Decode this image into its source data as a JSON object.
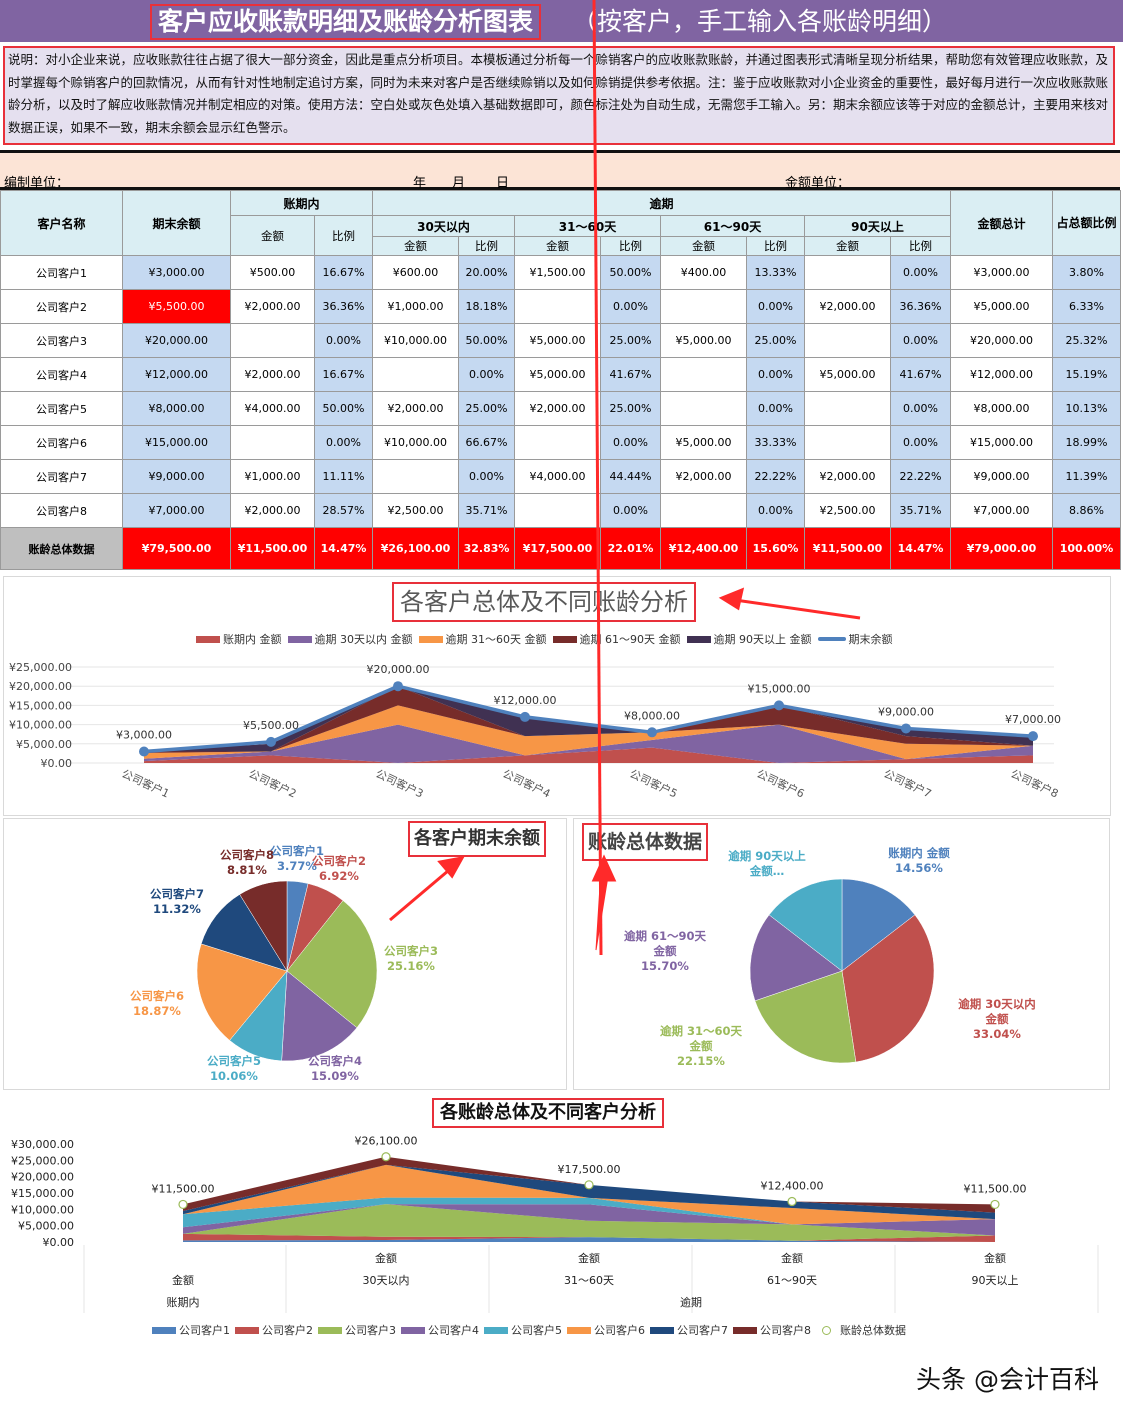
{
  "title": {
    "main": "客户应收账款明细及账龄分析图表",
    "sub": "（按客户，手工输入各账龄明细）"
  },
  "description": "说明：对小企业来说，应收账款往往占据了很大一部分资金，因此是重点分析项目。本模板通过分析每一个赊销客户的应收账款账龄，并通过图表形式清晰呈现分析结果，帮助您有效管理应收账款，及时掌握每个赊销客户的回款情况，从而有针对性地制定追讨方案，同时为未来对客户是否继续赊销以及如何赊销提供参考依据。注：鉴于应收账款对小企业资金的重要性，最好每月进行一次应收账款账龄分析，以及时了解应收账款情况并制定相应的对策。使用方法：空白处或灰色处填入基础数据即可，颜色标注处为自动生成，无需您手工输入。另：期末余额应该等于对应的金额总计，主要用来核对数据正误，如果不一致，期末余额会显示红色警示。",
  "unit_row": {
    "org": "编制单位：",
    "year": "年",
    "month": "月",
    "day": "日",
    "currency": "金额单位："
  },
  "table": {
    "headers": {
      "customer": "客户名称",
      "balance": "期末余额",
      "in_term": "账期内",
      "overdue": "逾期",
      "d30": "30天以内",
      "d60": "31～60天",
      "d90": "61～90天",
      "d90p": "90天以上",
      "amount": "金额",
      "ratio": "比例",
      "total": "金额总计",
      "share": "占总额比例"
    },
    "rows": [
      {
        "name": "公司客户1",
        "balance": "¥3,000.00",
        "in_amt": "¥500.00",
        "in_pct": "16.67%",
        "a30": "¥600.00",
        "p30": "20.00%",
        "a60": "¥1,500.00",
        "p60": "50.00%",
        "a90": "¥400.00",
        "p90": "13.33%",
        "a90p": "",
        "p90p": "0.00%",
        "total": "¥3,000.00",
        "share": "3.80%",
        "alert": false
      },
      {
        "name": "公司客户2",
        "balance": "¥5,500.00",
        "in_amt": "¥2,000.00",
        "in_pct": "36.36%",
        "a30": "¥1,000.00",
        "p30": "18.18%",
        "a60": "",
        "p60": "0.00%",
        "a90": "",
        "p90": "0.00%",
        "a90p": "¥2,000.00",
        "p90p": "36.36%",
        "total": "¥5,000.00",
        "share": "6.33%",
        "alert": true
      },
      {
        "name": "公司客户3",
        "balance": "¥20,000.00",
        "in_amt": "",
        "in_pct": "0.00%",
        "a30": "¥10,000.00",
        "p30": "50.00%",
        "a60": "¥5,000.00",
        "p60": "25.00%",
        "a90": "¥5,000.00",
        "p90": "25.00%",
        "a90p": "",
        "p90p": "0.00%",
        "total": "¥20,000.00",
        "share": "25.32%",
        "alert": false
      },
      {
        "name": "公司客户4",
        "balance": "¥12,000.00",
        "in_amt": "¥2,000.00",
        "in_pct": "16.67%",
        "a30": "",
        "p30": "0.00%",
        "a60": "¥5,000.00",
        "p60": "41.67%",
        "a90": "",
        "p90": "0.00%",
        "a90p": "¥5,000.00",
        "p90p": "41.67%",
        "total": "¥12,000.00",
        "share": "15.19%",
        "alert": false
      },
      {
        "name": "公司客户5",
        "balance": "¥8,000.00",
        "in_amt": "¥4,000.00",
        "in_pct": "50.00%",
        "a30": "¥2,000.00",
        "p30": "25.00%",
        "a60": "¥2,000.00",
        "p60": "25.00%",
        "a90": "",
        "p90": "0.00%",
        "a90p": "",
        "p90p": "0.00%",
        "total": "¥8,000.00",
        "share": "10.13%",
        "alert": false
      },
      {
        "name": "公司客户6",
        "balance": "¥15,000.00",
        "in_amt": "",
        "in_pct": "0.00%",
        "a30": "¥10,000.00",
        "p30": "66.67%",
        "a60": "",
        "p60": "0.00%",
        "a90": "¥5,000.00",
        "p90": "33.33%",
        "a90p": "",
        "p90p": "0.00%",
        "total": "¥15,000.00",
        "share": "18.99%",
        "alert": false
      },
      {
        "name": "公司客户7",
        "balance": "¥9,000.00",
        "in_amt": "¥1,000.00",
        "in_pct": "11.11%",
        "a30": "",
        "p30": "0.00%",
        "a60": "¥4,000.00",
        "p60": "44.44%",
        "a90": "¥2,000.00",
        "p90": "22.22%",
        "a90p": "¥2,000.00",
        "p90p": "22.22%",
        "total": "¥9,000.00",
        "share": "11.39%",
        "alert": false
      },
      {
        "name": "公司客户8",
        "balance": "¥7,000.00",
        "in_amt": "¥2,000.00",
        "in_pct": "28.57%",
        "a30": "¥2,500.00",
        "p30": "35.71%",
        "a60": "",
        "p60": "0.00%",
        "a90": "",
        "p90": "0.00%",
        "a90p": "¥2,500.00",
        "p90p": "35.71%",
        "total": "¥7,000.00",
        "share": "8.86%",
        "alert": false
      }
    ],
    "total_row": {
      "name": "账龄总体数据",
      "balance": "¥79,500.00",
      "in_amt": "¥11,500.00",
      "in_pct": "14.47%",
      "a30": "¥26,100.00",
      "p30": "32.83%",
      "a60": "¥17,500.00",
      "p60": "22.01%",
      "a90": "¥12,400.00",
      "p90": "15.60%",
      "a90p": "¥11,500.00",
      "p90p": "14.47%",
      "total": "¥79,000.00",
      "share": "100.00%"
    }
  },
  "chart_data": [
    {
      "type": "area",
      "title": "各客户总体及不同账龄分析",
      "stacked": true,
      "legend": "top",
      "categories": [
        "公司客户1",
        "公司客户2",
        "公司客户3",
        "公司客户4",
        "公司客户5",
        "公司客户6",
        "公司客户7",
        "公司客户8"
      ],
      "yticks": [
        "¥25,000.00",
        "¥20,000.00",
        "¥15,000.00",
        "¥10,000.00",
        "¥5,000.00",
        "¥0.00"
      ],
      "ylim": [
        0,
        25000
      ],
      "series": [
        {
          "name": "账期内 金额",
          "color": "#c0504d",
          "values": [
            500,
            2000,
            0,
            2000,
            4000,
            0,
            1000,
            2000
          ]
        },
        {
          "name": "逾期 30天以内 金额",
          "color": "#8064a2",
          "values": [
            600,
            1000,
            10000,
            0,
            2000,
            10000,
            0,
            2500
          ]
        },
        {
          "name": "逾期 31～60天 金额",
          "color": "#f79646",
          "values": [
            1500,
            0,
            5000,
            5000,
            2000,
            0,
            4000,
            0
          ]
        },
        {
          "name": "逾期 61～90天 金额",
          "color": "#772c2a",
          "values": [
            400,
            0,
            5000,
            0,
            0,
            5000,
            2000,
            0
          ]
        },
        {
          "name": "逾期 90天以上 金额",
          "color": "#403152",
          "values": [
            0,
            2000,
            0,
            5000,
            0,
            0,
            2000,
            2500
          ]
        }
      ],
      "line": {
        "name": "期末余额",
        "color": "#4f81bd",
        "values": [
          3000,
          5500,
          20000,
          12000,
          8000,
          15000,
          9000,
          7000
        ],
        "labels": [
          "¥3,000.00",
          "¥5,500.00",
          "¥20,000.00",
          "¥12,000.00",
          "¥8,000.00",
          "¥15,000.00",
          "¥9,000.00",
          "¥7,000.00"
        ]
      }
    },
    {
      "type": "pie",
      "title": "各客户期末余额",
      "slices": [
        {
          "name": "公司客户1",
          "value": 3000,
          "pct": "3.77%",
          "color": "#4f81bd"
        },
        {
          "name": "公司客户2",
          "value": 5500,
          "pct": "6.92%",
          "color": "#c0504d"
        },
        {
          "name": "公司客户3",
          "value": 20000,
          "pct": "25.16%",
          "color": "#9bbb59"
        },
        {
          "name": "公司客户4",
          "value": 12000,
          "pct": "15.09%",
          "color": "#8064a2"
        },
        {
          "name": "公司客户5",
          "value": 8000,
          "pct": "10.06%",
          "color": "#4bacc6"
        },
        {
          "name": "公司客户6",
          "value": 15000,
          "pct": "18.87%",
          "color": "#f79646"
        },
        {
          "name": "公司客户7",
          "value": 9000,
          "pct": "11.32%",
          "color": "#1f497d"
        },
        {
          "name": "公司客户8",
          "value": 7000,
          "pct": "8.81%",
          "color": "#772c2a"
        }
      ]
    },
    {
      "type": "pie",
      "title": "账龄总体数据",
      "slices": [
        {
          "name": "账期内 金额",
          "value": 11500,
          "pct": "14.56%",
          "color": "#4f81bd"
        },
        {
          "name": "逾期 30天以内 金额",
          "value": 26100,
          "pct": "33.04%",
          "color": "#c0504d"
        },
        {
          "name": "逾期 31～60天 金额",
          "value": 17500,
          "pct": "22.15%",
          "color": "#9bbb59"
        },
        {
          "name": "逾期 61～90天 金额",
          "value": 12400,
          "pct": "15.70%",
          "color": "#8064a2"
        },
        {
          "name": "逾期 90天以上 金额…",
          "value": 11500,
          "pct": "",
          "color": "#4bacc6"
        }
      ]
    },
    {
      "type": "area",
      "title": "各账龄总体及不同客户分析",
      "stacked": true,
      "legend": "bottom",
      "categories": [
        [
          "金额",
          "账期内"
        ],
        [
          "金额",
          "30天以内",
          "逾期"
        ],
        [
          "金额",
          "31～60天"
        ],
        [
          "金额",
          "61～90天"
        ],
        [
          "金额",
          "90天以上"
        ]
      ],
      "group_labels": [
        "账期内",
        "逾期"
      ],
      "yticks": [
        "¥30,000.00",
        "¥25,000.00",
        "¥20,000.00",
        "¥15,000.00",
        "¥10,000.00",
        "¥5,000.00",
        "¥0.00"
      ],
      "ylim": [
        0,
        30000
      ],
      "series": [
        {
          "name": "公司客户1",
          "color": "#4f81bd",
          "values": [
            500,
            600,
            1500,
            400,
            0
          ]
        },
        {
          "name": "公司客户2",
          "color": "#c0504d",
          "values": [
            2000,
            1000,
            0,
            0,
            2000
          ]
        },
        {
          "name": "公司客户3",
          "color": "#9bbb59",
          "values": [
            0,
            10000,
            5000,
            5000,
            0
          ]
        },
        {
          "name": "公司客户4",
          "color": "#8064a2",
          "values": [
            2000,
            0,
            5000,
            0,
            5000
          ]
        },
        {
          "name": "公司客户5",
          "color": "#4bacc6",
          "values": [
            4000,
            2000,
            2000,
            0,
            0
          ]
        },
        {
          "name": "公司客户6",
          "color": "#f79646",
          "values": [
            0,
            10000,
            0,
            5000,
            0
          ]
        },
        {
          "name": "公司客户7",
          "color": "#1f497d",
          "values": [
            1000,
            0,
            4000,
            2000,
            2000
          ]
        },
        {
          "name": "公司客户8",
          "color": "#772c2a",
          "values": [
            2000,
            2500,
            0,
            0,
            2500
          ]
        }
      ],
      "markers": {
        "name": "账龄总体数据",
        "values": [
          11500,
          26100,
          17500,
          12400,
          11500
        ],
        "labels": [
          "¥11,500.00",
          "¥26,100.00",
          "¥17,500.00",
          "¥12,400.00",
          "¥11,500.00"
        ]
      }
    }
  ],
  "watermark": "头条 @会计百科"
}
